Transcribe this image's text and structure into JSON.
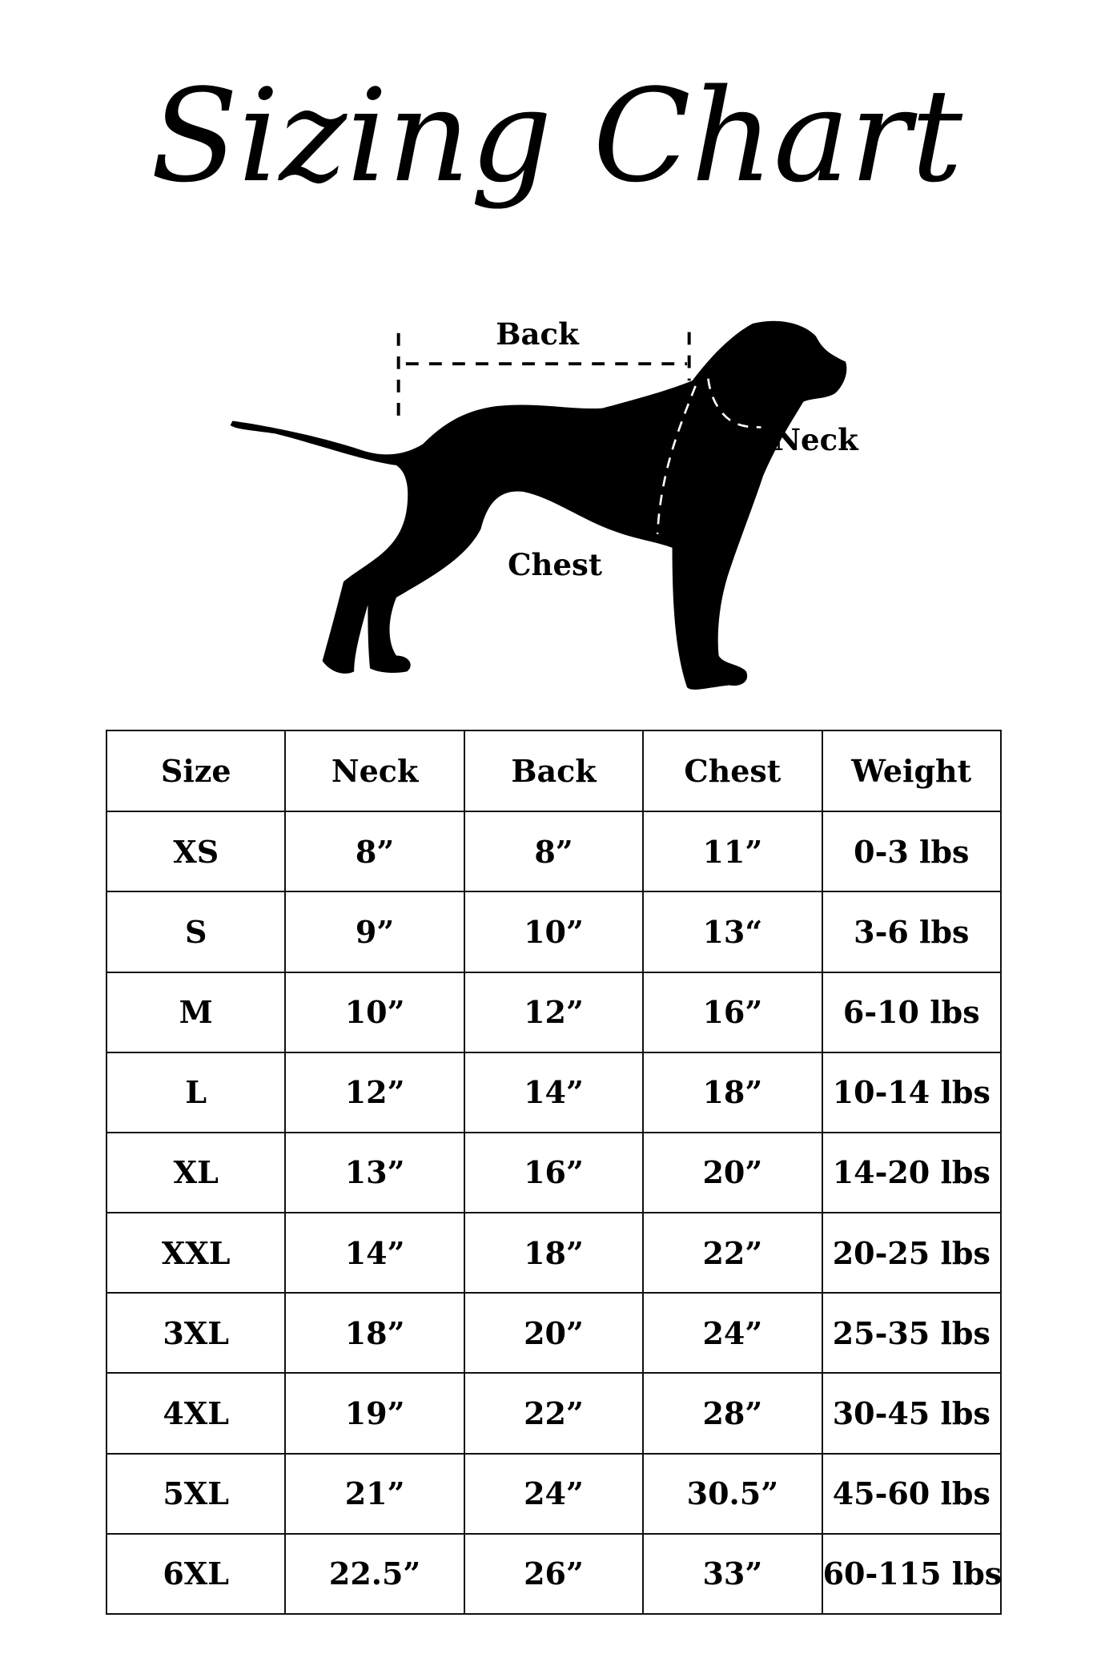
{
  "title": "Sizing Chart",
  "diagram": {
    "labels": {
      "back": "Back",
      "neck": "Neck",
      "chest": "Chest"
    }
  },
  "table": {
    "headers": [
      "Size",
      "Neck",
      "Back",
      "Chest",
      "Weight"
    ],
    "rows": [
      [
        "XS",
        "8”",
        "8”",
        "11”",
        "0-3 lbs"
      ],
      [
        "S",
        "9”",
        "10”",
        "13“",
        "3-6 lbs"
      ],
      [
        "M",
        "10”",
        "12”",
        "16”",
        "6-10 lbs"
      ],
      [
        "L",
        "12”",
        "14”",
        "18”",
        "10-14 lbs"
      ],
      [
        "XL",
        "13”",
        "16”",
        "20”",
        "14-20 lbs"
      ],
      [
        "XXL",
        "14”",
        "18”",
        "22”",
        "20-25 lbs"
      ],
      [
        "3XL",
        "18”",
        "20”",
        "24”",
        "25-35 lbs"
      ],
      [
        "4XL",
        "19”",
        "22”",
        "28”",
        "30-45 lbs"
      ],
      [
        "5XL",
        "21”",
        "24”",
        "30.5”",
        "45-60 lbs"
      ],
      [
        "6XL",
        "22.5”",
        "26”",
        "33”",
        "60-115 lbs"
      ]
    ]
  }
}
